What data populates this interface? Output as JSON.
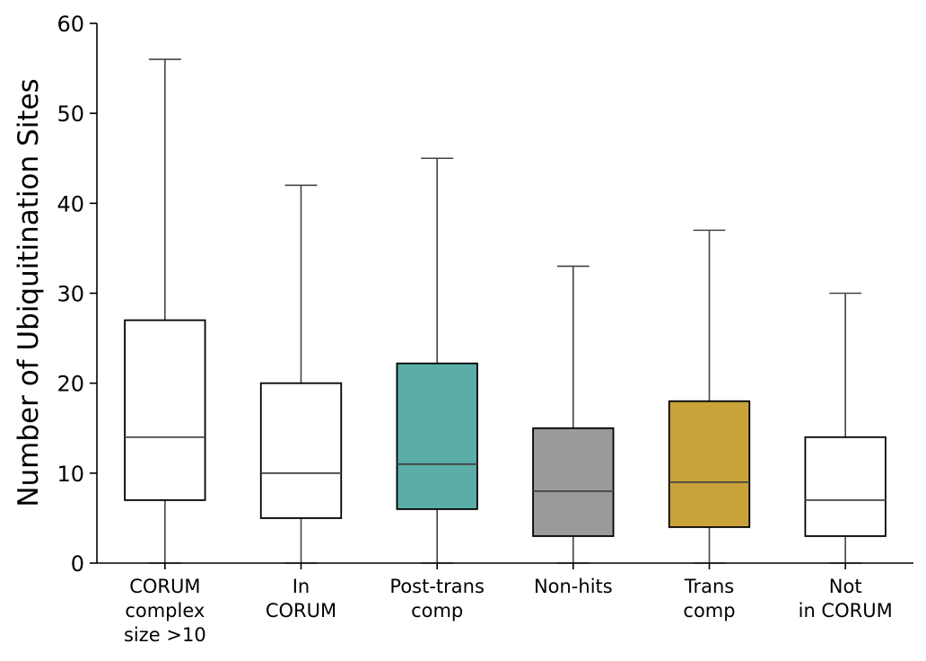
{
  "chart_data": {
    "type": "box",
    "title": "",
    "xlabel": "",
    "ylabel": "Number of Ubiquitination Sites",
    "ylim": [
      0,
      60
    ],
    "yticks": [
      0,
      10,
      20,
      30,
      40,
      50,
      60
    ],
    "grid": false,
    "legend": "none",
    "categories": [
      [
        "CORUM",
        "complex",
        "size >10"
      ],
      [
        "In",
        "CORUM"
      ],
      [
        "Post-trans",
        "comp"
      ],
      [
        "Non-hits"
      ],
      [
        "Trans",
        "comp"
      ],
      [
        "Not",
        "in CORUM"
      ]
    ],
    "boxes": [
      {
        "whisker_low": 0,
        "q1": 7,
        "median": 14,
        "q3": 27,
        "whisker_high": 56,
        "color": "#ffffff"
      },
      {
        "whisker_low": 0,
        "q1": 5,
        "median": 10,
        "q3": 20,
        "whisker_high": 42,
        "color": "#ffffff"
      },
      {
        "whisker_low": 0,
        "q1": 6,
        "median": 11,
        "q3": 22.2,
        "whisker_high": 45,
        "color": "#5bada8"
      },
      {
        "whisker_low": 0,
        "q1": 3,
        "median": 8,
        "q3": 15,
        "whisker_high": 33,
        "color": "#9a9a9a"
      },
      {
        "whisker_low": 0,
        "q1": 4,
        "median": 9,
        "q3": 18,
        "whisker_high": 37,
        "color": "#c9a23a"
      },
      {
        "whisker_low": 0,
        "q1": 3,
        "median": 7,
        "q3": 14,
        "whisker_high": 30,
        "color": "#ffffff"
      }
    ]
  }
}
